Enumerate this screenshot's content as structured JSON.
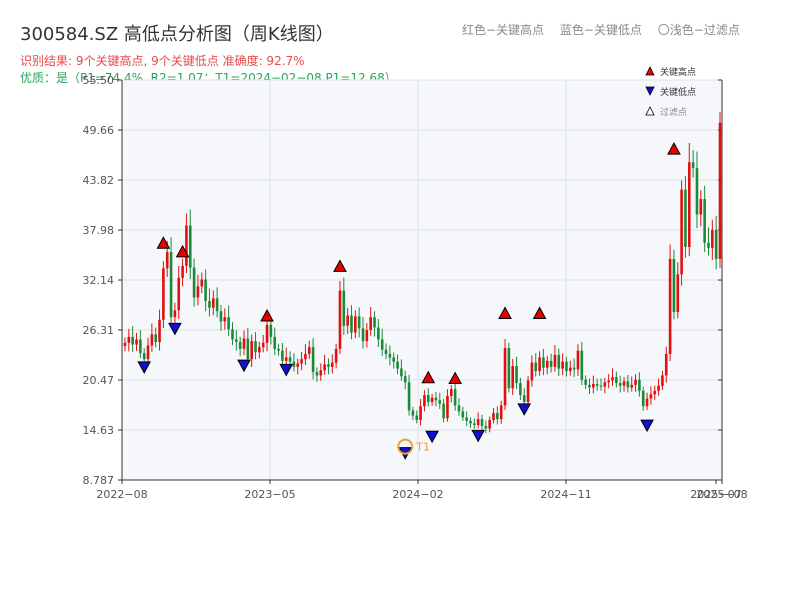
{
  "title": "300584.SZ 高低点分析图（周K线图）",
  "legend_top": [
    "红色−关键高点",
    "蓝色−关键低点",
    "〇浅色−过滤点"
  ],
  "info_line1": "识别结果: 9个关键高点, 9个关键低点  准确度: 92.7%",
  "info_line2": "优质：是（P1=74.4%, R2=1.07；T1=2024−02−08 P1=12.68）",
  "colors": {
    "up": "#e01010",
    "down": "#1a8a3a",
    "high": "#e60000",
    "low": "#1010d0",
    "t1": "#f0a030",
    "info_red": "#e84a4a",
    "info_green": "#2aa55a"
  },
  "chart_data": {
    "type": "candlestick",
    "x_ticks": [
      "2022−08",
      "2023−05",
      "2024−02",
      "2024−11",
      "2025−07",
      "2025−08"
    ],
    "y_ticks": [
      "55.50",
      "49.66",
      "43.82",
      "37.98",
      "32.14",
      "26.31",
      "20.47",
      "14.63",
      "8.787"
    ],
    "ylim": [
      8.787,
      55.5
    ],
    "legend": [
      "关键高点",
      "关键低点",
      "过滤点"
    ],
    "closes": [
      24.8,
      25.5,
      24.6,
      25.2,
      23.6,
      22.9,
      24.5,
      25.8,
      24.9,
      27.5,
      33.5,
      35.4,
      27.8,
      28.6,
      32.4,
      33.8,
      38.5,
      33.6,
      30.1,
      31.4,
      32.2,
      29.7,
      28.9,
      30.0,
      28.5,
      27.3,
      27.8,
      26.4,
      25.2,
      24.9,
      24.1,
      25.3,
      22.9,
      25.0,
      23.7,
      24.3,
      24.8,
      26.9,
      25.5,
      24.1,
      23.9,
      22.7,
      23.1,
      22.6,
      22.0,
      22.4,
      22.9,
      23.5,
      24.3,
      21.4,
      21.0,
      21.6,
      22.3,
      22.0,
      22.5,
      24.1,
      30.9,
      26.8,
      28.0,
      26.0,
      27.9,
      26.5,
      25.0,
      26.3,
      27.8,
      26.6,
      25.2,
      24.0,
      23.5,
      23.1,
      22.6,
      21.8,
      20.9,
      20.2,
      16.9,
      16.3,
      15.8,
      17.4,
      18.7,
      17.9,
      18.4,
      18.1,
      17.7,
      16.0,
      18.6,
      19.4,
      17.5,
      16.8,
      16.1,
      15.7,
      15.4,
      15.2,
      15.9,
      15.1,
      14.8,
      15.8,
      16.6,
      15.9,
      17.5,
      24.2,
      19.5,
      22.1,
      20.1,
      18.7,
      17.9,
      20.4,
      22.5,
      21.5,
      23.1,
      21.9,
      22.7,
      22.0,
      23.4,
      21.8,
      22.6,
      21.5,
      21.9,
      21.7,
      23.9,
      20.5,
      19.9,
      19.6,
      20.0,
      19.8,
      19.7,
      20.2,
      20.4,
      20.8,
      20.1,
      19.8,
      20.3,
      19.6,
      19.9,
      20.5,
      19.2,
      17.4,
      18.3,
      18.8,
      19.2,
      19.8,
      21.0,
      23.5,
      34.6,
      28.4,
      32.8,
      42.7,
      36.0,
      45.9,
      45.2,
      39.8,
      41.6,
      36.5,
      35.9,
      38.0,
      34.6,
      50.5
    ],
    "key_highs": [
      {
        "bar": 10,
        "price": 35.5
      },
      {
        "bar": 15,
        "price": 34.5
      },
      {
        "bar": 37,
        "price": 27.0
      },
      {
        "bar": 56,
        "price": 32.8
      },
      {
        "bar": 79,
        "price": 19.8
      },
      {
        "bar": 86,
        "price": 19.7
      },
      {
        "bar": 99,
        "price": 27.3
      },
      {
        "bar": 108,
        "price": 27.3
      },
      {
        "bar": 143,
        "price": 46.5
      }
    ],
    "key_lows": [
      {
        "bar": 5,
        "price": 22.7
      },
      {
        "bar": 13,
        "price": 27.2
      },
      {
        "bar": 31,
        "price": 22.9
      },
      {
        "bar": 42,
        "price": 22.4
      },
      {
        "bar": 73,
        "price": 12.68
      },
      {
        "bar": 80,
        "price": 14.6
      },
      {
        "bar": 92,
        "price": 14.7
      },
      {
        "bar": 104,
        "price": 17.8
      },
      {
        "bar": 136,
        "price": 15.9
      }
    ],
    "t1": {
      "bar": 73,
      "price": 12.68,
      "label": "T1"
    }
  }
}
